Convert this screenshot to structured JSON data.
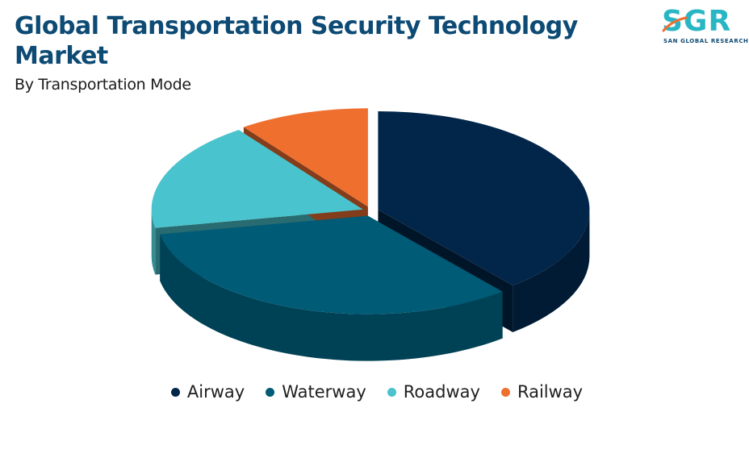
{
  "header": {
    "title": "Global Transportation Security Technology Market",
    "subtitle": "By Transportation Mode"
  },
  "logo": {
    "letters": "SGR",
    "tagline": "SAN GLOBAL RESEARCH",
    "color": "#29b6c4"
  },
  "chart_data": {
    "type": "pie",
    "style": "3d-exploded",
    "categories": [
      "Airway",
      "Waterway",
      "Roadway",
      "Railway"
    ],
    "values": [
      39,
      33,
      18,
      10
    ],
    "colors": [
      "#022649",
      "#005b76",
      "#49c3cd",
      "#ef6f2f"
    ],
    "legend_position": "bottom"
  }
}
